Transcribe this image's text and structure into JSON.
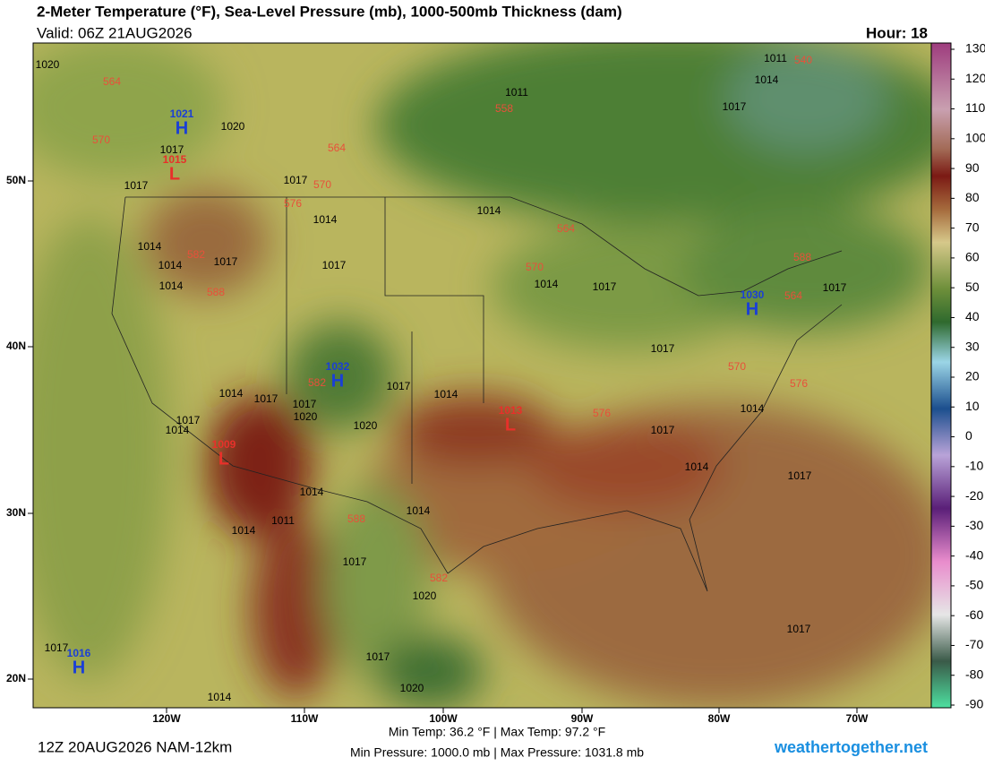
{
  "header": {
    "title": "2-Meter Temperature (°F), Sea-Level Pressure (mb), 1000-500mb Thickness (dam)",
    "valid": "Valid: 06Z 21AUG2026",
    "hour": "Hour: 18"
  },
  "map": {
    "lon_labels": [
      "120W",
      "110W",
      "100W",
      "90W",
      "80W",
      "70W"
    ],
    "lat_labels": [
      "50N",
      "40N",
      "30N",
      "20N"
    ],
    "pressure_centers": [
      {
        "symbol": "H",
        "value": "1021"
      },
      {
        "symbol": "L",
        "value": "1015"
      },
      {
        "symbol": "H",
        "value": "1032"
      },
      {
        "symbol": "L",
        "value": "1009"
      },
      {
        "symbol": "L",
        "value": "1013"
      },
      {
        "symbol": "H",
        "value": "1030"
      },
      {
        "symbol": "H",
        "value": "1016"
      }
    ],
    "isobar_labels": [
      "1020",
      "1011",
      "1020",
      "1017",
      "1017",
      "1017",
      "1014",
      "1014",
      "1014",
      "1014",
      "1017",
      "1017",
      "1014",
      "1014",
      "1017",
      "1017",
      "1017",
      "1014",
      "1014",
      "1017",
      "1017",
      "1017",
      "1014",
      "1020",
      "1020",
      "1017",
      "1014",
      "1017",
      "1014",
      "1014",
      "1011",
      "1014",
      "1017",
      "1020",
      "1017",
      "1017",
      "1017",
      "1020",
      "1014",
      "1011",
      "1014",
      "1017",
      "1014",
      "1017"
    ],
    "thickness_labels": [
      "564",
      "570",
      "558",
      "564",
      "570",
      "576",
      "582",
      "588",
      "564",
      "570",
      "576",
      "570",
      "576",
      "564",
      "588",
      "588",
      "582",
      "582",
      "540"
    ]
  },
  "colorbar": {
    "ticks": [
      130,
      120,
      110,
      100,
      90,
      80,
      70,
      60,
      50,
      40,
      30,
      20,
      10,
      0,
      -10,
      -20,
      -30,
      -40,
      -50,
      -60,
      -70,
      -80,
      -90
    ]
  },
  "footer": {
    "model_run": "12Z 20AUG2026 NAM-12km",
    "temp_stats": "Min Temp:  36.2 °F | Max Temp:  97.2 °F",
    "pressure_stats": "Min Pressure: 1000.0 mb | Max Pressure: 1031.8 mb",
    "site": "weathertogether.net"
  }
}
